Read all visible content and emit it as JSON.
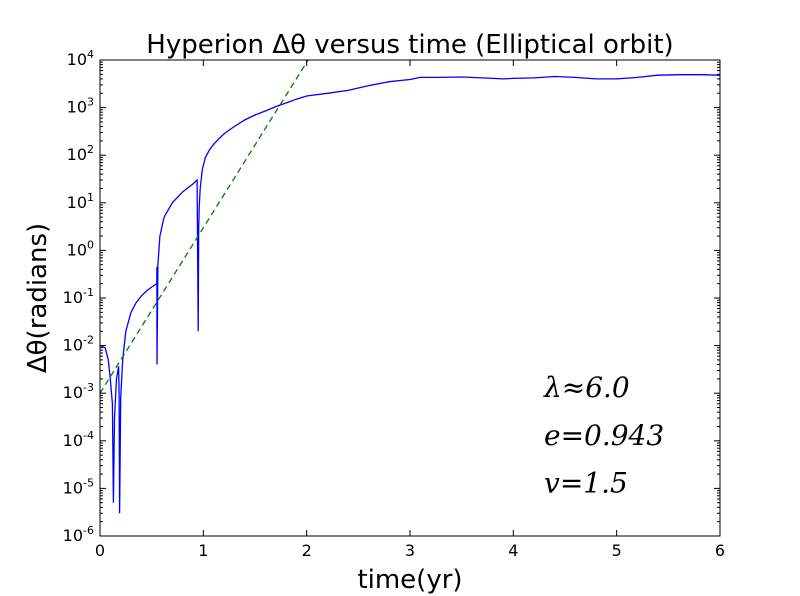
{
  "chart_data": {
    "type": "line",
    "title": "Hyperion Δθ versus time (Elliptical orbit)",
    "xlabel": "time(yr)",
    "ylabel": "Δθ(radians)",
    "xlim": [
      0,
      6
    ],
    "ylim": [
      1e-06,
      10000
    ],
    "yscale": "log",
    "grid": false,
    "x_ticks": [
      0,
      1,
      2,
      3,
      4,
      5,
      6
    ],
    "x_tick_labels": [
      "0",
      "1",
      "2",
      "3",
      "4",
      "5",
      "6"
    ],
    "y_ticks": [
      {
        "value": 1e-06,
        "base": "10",
        "exp": "-6"
      },
      {
        "value": 1e-05,
        "base": "10",
        "exp": "-5"
      },
      {
        "value": 0.0001,
        "base": "10",
        "exp": "-4"
      },
      {
        "value": 0.001,
        "base": "10",
        "exp": "-3"
      },
      {
        "value": 0.01,
        "base": "10",
        "exp": "-2"
      },
      {
        "value": 0.1,
        "base": "10",
        "exp": "-1"
      },
      {
        "value": 1,
        "base": "10",
        "exp": "0"
      },
      {
        "value": 10,
        "base": "10",
        "exp": "1"
      },
      {
        "value": 100,
        "base": "10",
        "exp": "2"
      },
      {
        "value": 1000,
        "base": "10",
        "exp": "3"
      },
      {
        "value": 10000,
        "base": "10",
        "exp": "4"
      }
    ],
    "series": [
      {
        "style": "solid",
        "color": "#0000ff",
        "x": [
          0.0,
          0.05,
          0.08,
          0.1,
          0.12,
          0.13,
          0.14,
          0.16,
          0.18,
          0.185,
          0.19,
          0.2,
          0.22,
          0.25,
          0.3,
          0.35,
          0.4,
          0.45,
          0.5,
          0.55,
          0.551,
          0.552,
          0.56,
          0.58,
          0.62,
          0.7,
          0.8,
          0.9,
          0.94,
          0.95,
          0.955,
          0.96,
          0.97,
          0.99,
          1.02,
          1.06,
          1.1,
          1.15,
          1.2,
          1.3,
          1.4,
          1.5,
          1.6,
          1.7,
          1.8,
          1.9,
          2.0,
          2.2,
          2.4,
          2.6,
          2.8,
          3.0,
          3.1,
          3.3,
          3.5,
          3.7,
          3.9,
          4.0,
          4.2,
          4.4,
          4.6,
          4.8,
          5.0,
          5.2,
          5.4,
          5.6,
          5.8,
          6.0
        ],
        "y": [
          0.01,
          0.009,
          0.005,
          0.002,
          0.0006,
          5e-06,
          0.0003,
          0.002,
          0.0037,
          0.001,
          3e-06,
          0.0008,
          0.005,
          0.02,
          0.05,
          0.08,
          0.11,
          0.14,
          0.17,
          0.2,
          0.45,
          0.004,
          0.5,
          2.0,
          5.0,
          10,
          17,
          25,
          30,
          0.02,
          3,
          8,
          20,
          50,
          90,
          130,
          170,
          220,
          280,
          400,
          550,
          700,
          850,
          1050,
          1250,
          1500,
          1750,
          2000,
          2300,
          2900,
          3500,
          3900,
          4300,
          4300,
          4400,
          4200,
          4000,
          4100,
          4200,
          4500,
          4300,
          4000,
          4000,
          4300,
          4800,
          4900,
          4900,
          4800
        ]
      },
      {
        "style": "dashed",
        "color": "#008000",
        "x": [
          0.0,
          2.1
        ],
        "y": [
          0.001,
          20000
        ]
      }
    ],
    "annotations": [
      {
        "text": "λ≈6.0",
        "x": 4.2,
        "y": 0.001
      },
      {
        "text": "e=0.943",
        "x": 4.2,
        "y": 0.0001
      },
      {
        "text": "v=1.5",
        "x": 4.2,
        "y": 1e-05
      }
    ]
  }
}
